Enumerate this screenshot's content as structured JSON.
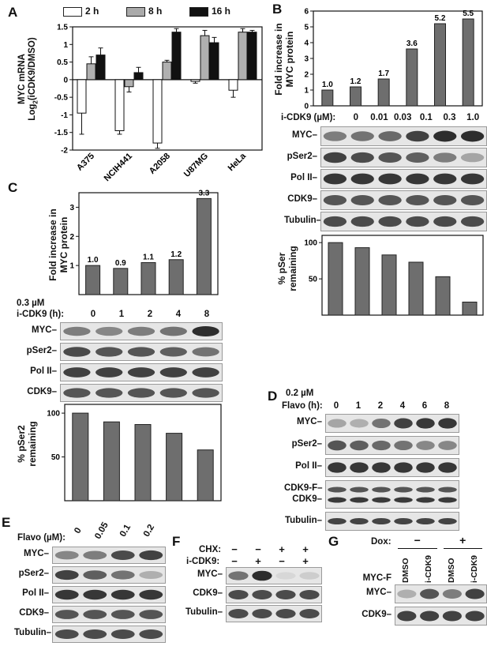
{
  "panels": {
    "A": "A",
    "B": "B",
    "C": "C",
    "D": "D",
    "E": "E",
    "F": "F",
    "G": "G"
  },
  "panelA": {
    "legend": [
      "2 h",
      "8 h",
      "16 h"
    ],
    "ylabel_line1": "MYC mRNA",
    "ylabel_line2": "Log",
    "ylabel_sub": "2",
    "ylabel_line3": "(iCDK9/DMSO)",
    "yticks": [
      "1.5",
      "1",
      "0.5",
      "0",
      "-0.5",
      "-1",
      "-1.5",
      "-2"
    ],
    "categories": [
      "A375",
      "NCIH441",
      "A2058",
      "U87MG",
      "HeLa"
    ]
  },
  "panelB": {
    "ylabel": [
      "Fold increase in",
      "MYC protein"
    ],
    "yticks": [
      "6",
      "5",
      "4",
      "3",
      "2",
      "1",
      "0"
    ],
    "conc_label": "i-CDK9 (µM):",
    "conc": [
      "0",
      "0.01",
      "0.03",
      "0.1",
      "0.3",
      "1.0"
    ],
    "rows": [
      "MYC",
      "pSer2",
      "Pol II",
      "CDK9",
      "Tubulin"
    ],
    "ylabel2": [
      "% pSer",
      "remaining"
    ],
    "yticks2": [
      "100",
      "50"
    ]
  },
  "panelC": {
    "ylabel": [
      "Fold increase in",
      "MYC protein"
    ],
    "yticks": [
      "3",
      "2",
      "1"
    ],
    "treat_line1": "0.3 µM",
    "treat_line2": "i-CDK9 (h):",
    "times": [
      "0",
      "1",
      "2",
      "4",
      "8"
    ],
    "rows": [
      "MYC",
      "pSer2",
      "Pol II",
      "CDK9"
    ],
    "ylabel2": [
      "% pSer2",
      "remaining"
    ],
    "yticks2": [
      "100",
      "50"
    ]
  },
  "panelD": {
    "treat_line1": "0.2 µM",
    "treat_line2": "Flavo (h):",
    "times": [
      "0",
      "1",
      "2",
      "4",
      "6",
      "8"
    ],
    "rows": [
      "MYC",
      "pSer2",
      "Pol II",
      "CDK9-F",
      "CDK9",
      "Tubulin"
    ]
  },
  "panelE": {
    "treat": "Flavo (µM):",
    "conc": [
      "0",
      "0.05",
      "0.1",
      "0.2"
    ],
    "rows": [
      "MYC",
      "pSer2",
      "Pol II",
      "CDK9",
      "Tubulin"
    ]
  },
  "panelF": {
    "chx": "CHX:",
    "icdk9": "i-CDK9:",
    "chx_signs": [
      "−",
      "−",
      "+",
      "+"
    ],
    "icdk9_signs": [
      "−",
      "+",
      "−",
      "+"
    ],
    "rows": [
      "MYC",
      "CDK9",
      "Tubulin"
    ]
  },
  "panelG": {
    "dox": "Dox:",
    "dox_signs": [
      "−",
      "+"
    ],
    "lanes": [
      "DMSO",
      "i-CDK9",
      "DMSO",
      "i-CDK9"
    ],
    "rows": [
      "MYC-F",
      "MYC",
      "CDK9"
    ]
  },
  "chart_data": [
    {
      "type": "bar",
      "title": "",
      "ylabel": "MYC mRNA Log2(iCDK9/DMSO)",
      "ylim": [
        -2,
        1.5
      ],
      "categories": [
        "A375",
        "NCIH441",
        "A2058",
        "U87MG",
        "HeLa"
      ],
      "series": [
        {
          "name": "2 h",
          "values": [
            -0.95,
            -1.45,
            -1.8,
            -0.05,
            -0.3
          ]
        },
        {
          "name": "8 h",
          "values": [
            0.45,
            -0.2,
            0.5,
            1.25,
            1.35
          ]
        },
        {
          "name": "16 h",
          "values": [
            0.7,
            0.2,
            1.35,
            1.05,
            1.35
          ]
        }
      ]
    },
    {
      "type": "bar",
      "ylabel": "Fold increase in MYC protein",
      "ylim": [
        0,
        6
      ],
      "categories": [
        "0",
        "0.01",
        "0.03",
        "0.1",
        "0.3",
        "1.0"
      ],
      "values": [
        1.0,
        1.2,
        1.7,
        3.6,
        5.2,
        5.5
      ],
      "data_labels": [
        "1.0",
        "1.2",
        "1.7",
        "3.6",
        "5.2",
        "5.5"
      ]
    },
    {
      "type": "bar",
      "ylabel": "% pSer remaining",
      "ylim": [
        0,
        110
      ],
      "categories": [
        "0",
        "0.01",
        "0.03",
        "0.1",
        "0.3",
        "1.0"
      ],
      "values": [
        100,
        93,
        83,
        73,
        53,
        18
      ]
    },
    {
      "type": "bar",
      "ylabel": "Fold increase in MYC protein",
      "ylim": [
        0,
        3.5
      ],
      "categories": [
        "0",
        "1",
        "2",
        "4",
        "8"
      ],
      "values": [
        1.0,
        0.9,
        1.1,
        1.2,
        3.3
      ],
      "data_labels": [
        "1.0",
        "0.9",
        "1.1",
        "1.2",
        "3.3"
      ]
    },
    {
      "type": "bar",
      "ylabel": "% pSer2 remaining",
      "ylim": [
        0,
        110
      ],
      "categories": [
        "0",
        "1",
        "2",
        "4",
        "8"
      ],
      "values": [
        100,
        90,
        87,
        77,
        58
      ]
    }
  ]
}
